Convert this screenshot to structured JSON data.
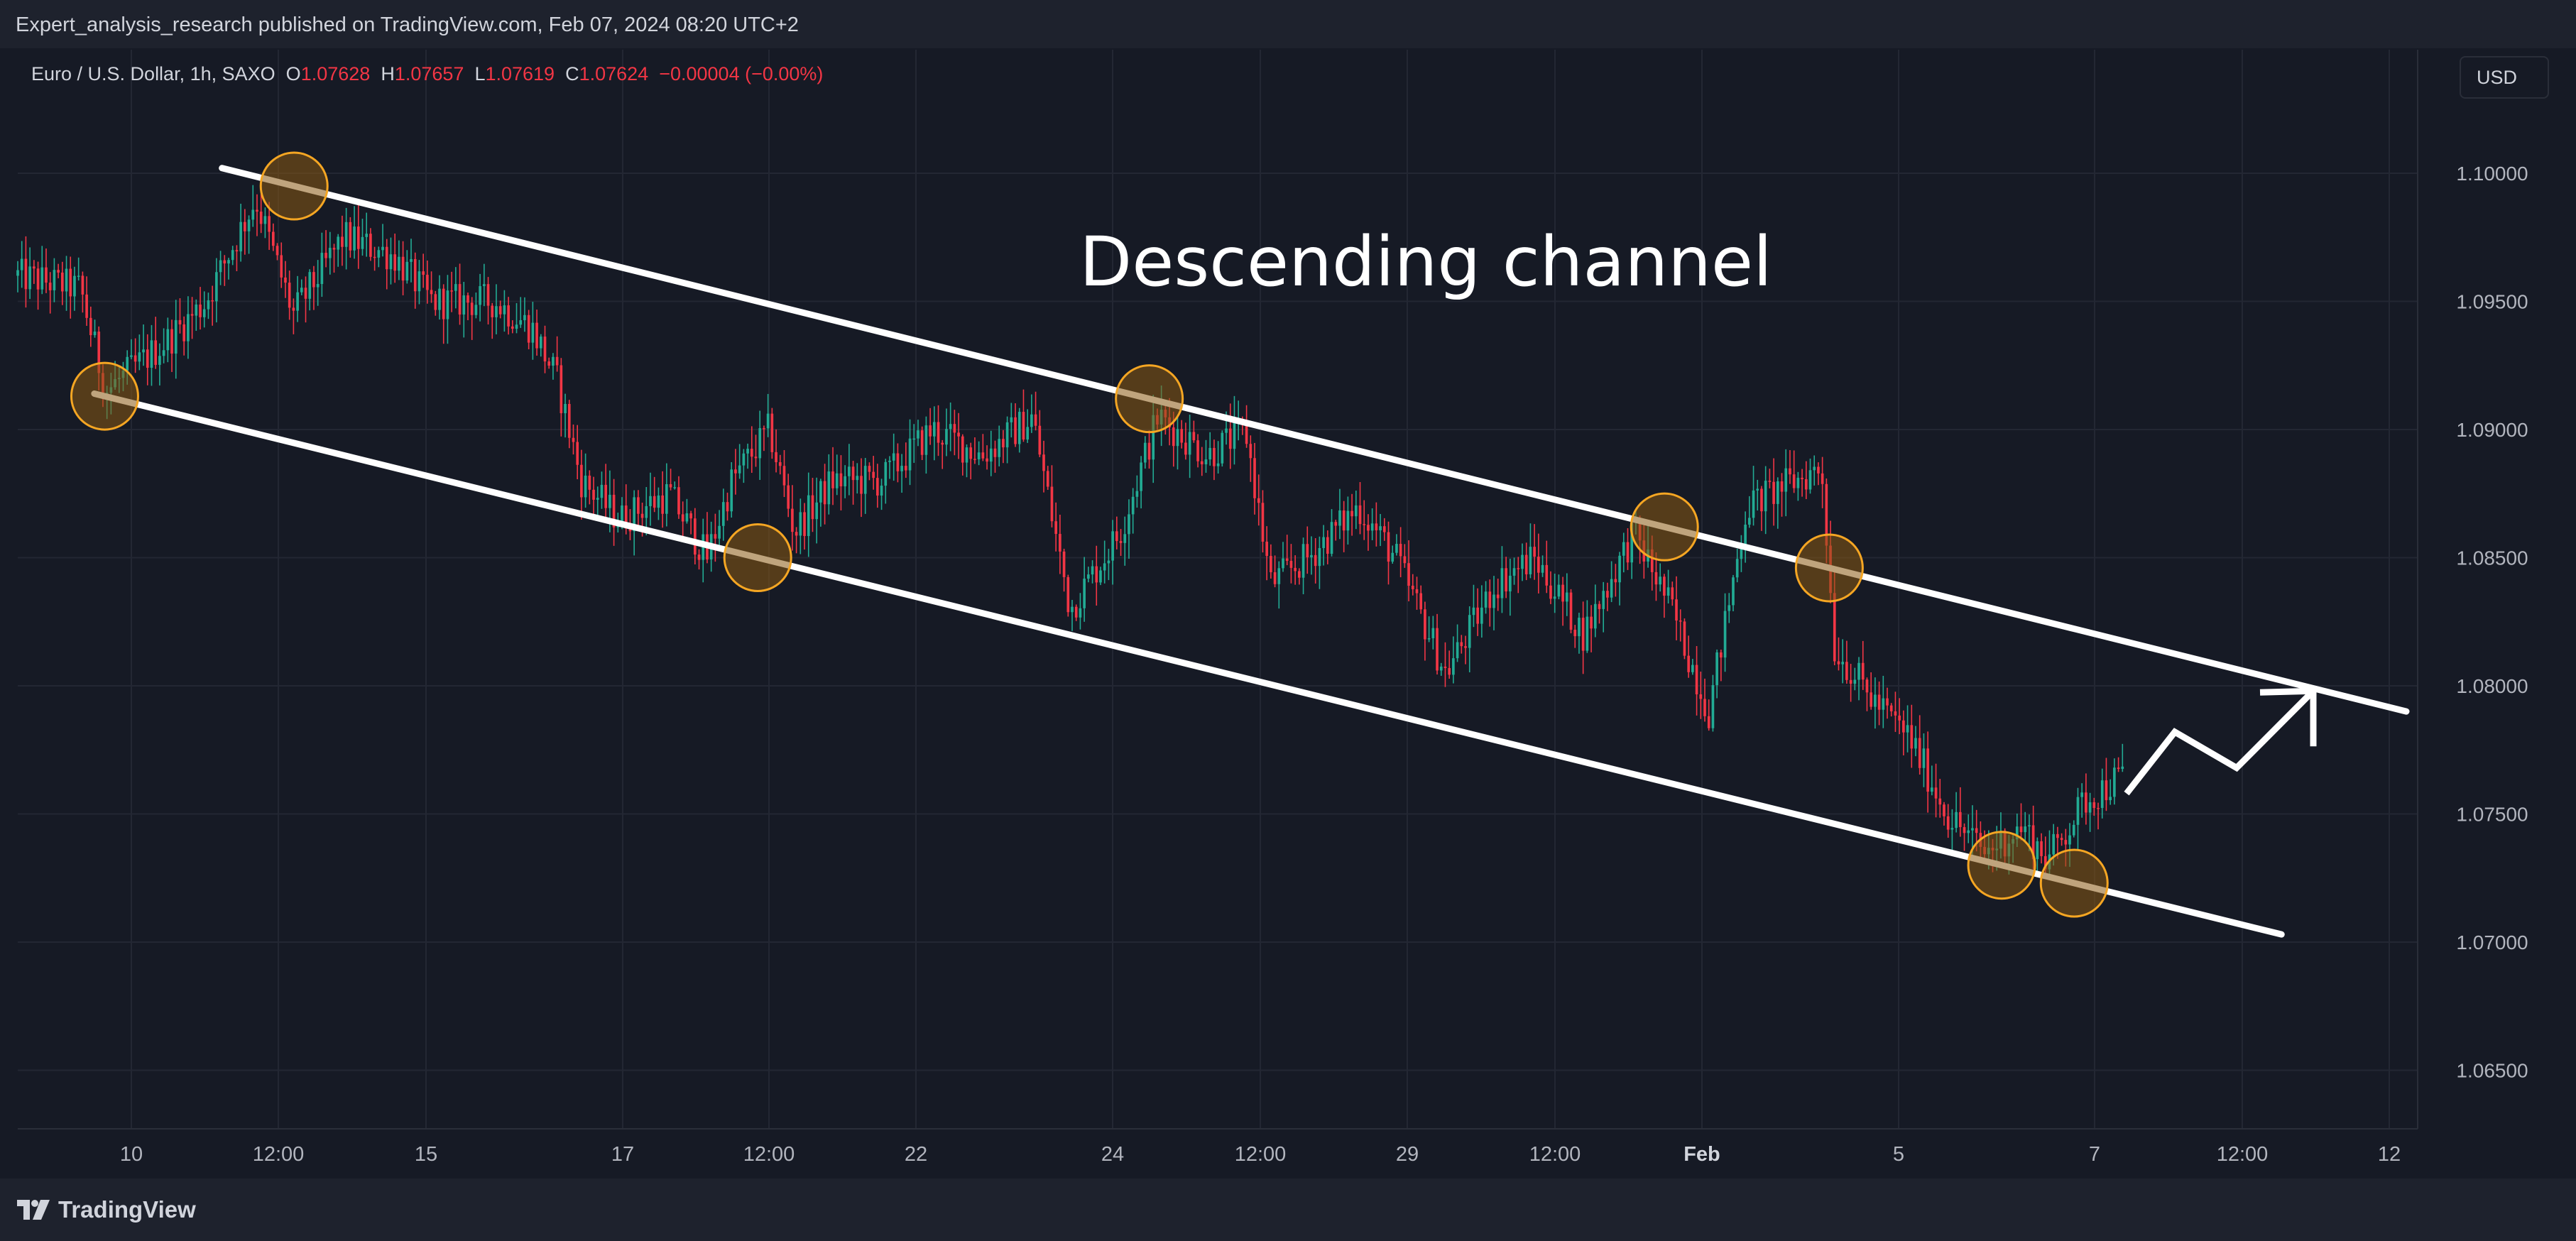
{
  "header": {
    "publisher_text": "Expert_analysis_research published on TradingView.com, Feb 07, 2024 08:20 UTC+2"
  },
  "legend": {
    "symbol": "Euro / U.S. Dollar, 1h, SAXO",
    "open_label": "O",
    "open": "1.07628",
    "high_label": "H",
    "high": "1.07657",
    "low_label": "L",
    "low": "1.07619",
    "close_label": "C",
    "close": "1.07624",
    "change": "−0.00004 (−0.00%)"
  },
  "currency": "USD",
  "footer": {
    "brand": "TradingView"
  },
  "colors": {
    "up": "#22ab94",
    "down": "#f23645",
    "background": "#161a25",
    "grid": "#232733",
    "channel_line": "#ffffff",
    "marker_fill": "#8a5a12",
    "marker_stroke": "#f5a623"
  },
  "chart_data": {
    "type": "candlestick",
    "title": "",
    "annotation": "Descending channel",
    "ylim": [
      1.0625,
      1.103
    ],
    "y_ticks": [
      "1.06500",
      "1.07000",
      "1.07500",
      "1.08000",
      "1.08500",
      "1.09000",
      "1.09500",
      "1.10000"
    ],
    "x_ticks": [
      "10",
      "12:00",
      "15",
      "17",
      "12:00",
      "22",
      "24",
      "12:00",
      "29",
      "12:00",
      "Feb",
      "5",
      "7",
      "12:00",
      "12"
    ],
    "grid": true,
    "price_path": [
      [
        0,
        1.096
      ],
      [
        0.025,
        1.0955
      ],
      [
        0.035,
        1.0915
      ],
      [
        0.06,
        1.0935
      ],
      [
        0.075,
        1.095
      ],
      [
        0.095,
        1.099
      ],
      [
        0.11,
        1.0945
      ],
      [
        0.13,
        1.0975
      ],
      [
        0.15,
        1.0968
      ],
      [
        0.165,
        1.095
      ],
      [
        0.19,
        1.095
      ],
      [
        0.205,
        1.094
      ],
      [
        0.215,
        1.092
      ],
      [
        0.225,
        1.088
      ],
      [
        0.24,
        1.0865
      ],
      [
        0.26,
        1.0875
      ],
      [
        0.275,
        1.085
      ],
      [
        0.285,
        1.088
      ],
      [
        0.3,
        1.09
      ],
      [
        0.31,
        1.086
      ],
      [
        0.325,
        1.088
      ],
      [
        0.345,
        1.088
      ],
      [
        0.365,
        1.09
      ],
      [
        0.385,
        1.089
      ],
      [
        0.405,
        1.0905
      ],
      [
        0.42,
        1.083
      ],
      [
        0.44,
        1.086
      ],
      [
        0.455,
        1.0905
      ],
      [
        0.475,
        1.089
      ],
      [
        0.49,
        1.09
      ],
      [
        0.5,
        1.084
      ],
      [
        0.515,
        1.085
      ],
      [
        0.535,
        1.087
      ],
      [
        0.55,
        1.085
      ],
      [
        0.57,
        1.0805
      ],
      [
        0.59,
        1.084
      ],
      [
        0.605,
        1.085
      ],
      [
        0.625,
        1.082
      ],
      [
        0.645,
        1.086
      ],
      [
        0.66,
        1.083
      ],
      [
        0.675,
        1.079
      ],
      [
        0.69,
        1.087
      ],
      [
        0.705,
        1.0878
      ],
      [
        0.72,
        1.0885
      ],
      [
        0.725,
        1.0815
      ],
      [
        0.74,
        1.0795
      ],
      [
        0.755,
        1.078
      ],
      [
        0.77,
        1.075
      ],
      [
        0.785,
        1.0735
      ],
      [
        0.8,
        1.0745
      ],
      [
        0.81,
        1.0732
      ],
      [
        0.825,
        1.0755
      ],
      [
        0.84,
        1.0765
      ]
    ],
    "channel": {
      "upper": [
        [
          "2024-01-11 18:00",
          1.1002
        ],
        [
          "2024-02-12 20:00",
          1.079
        ]
      ],
      "lower": [
        [
          "2024-01-09 21:00",
          1.0914
        ],
        [
          "2024-02-11 00:00",
          1.0703
        ]
      ]
    },
    "touch_points": [
      [
        "lower",
        1.0913
      ],
      [
        "upper",
        1.0995
      ],
      [
        "upper",
        1.0912
      ],
      [
        "lower",
        1.085
      ],
      [
        "upper",
        1.0862
      ],
      [
        "upper",
        1.0846
      ],
      [
        "lower",
        1.073
      ],
      [
        "lower",
        1.0723
      ]
    ],
    "projection": [
      1.0758,
      1.0782,
      1.0768,
      1.0798
    ]
  }
}
